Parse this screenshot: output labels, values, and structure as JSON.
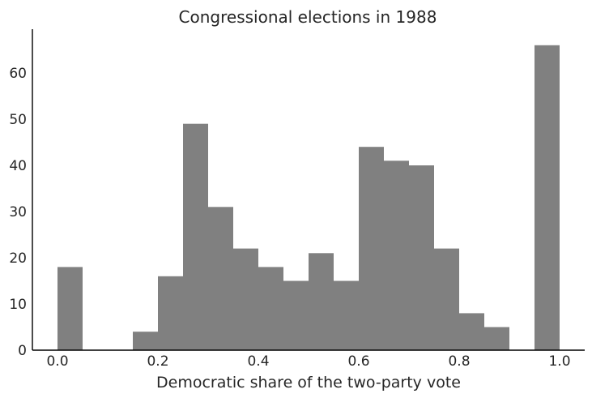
{
  "chart_data": {
    "type": "bar",
    "subtype": "histogram",
    "title": "Congressional elections in 1988",
    "xlabel": "Democratic share of the two-party vote",
    "ylabel": "",
    "bin_width": 0.05,
    "bin_edges": [
      0.0,
      0.05,
      0.1,
      0.15,
      0.2,
      0.25,
      0.3,
      0.35,
      0.4,
      0.45,
      0.5,
      0.55,
      0.6,
      0.65,
      0.7,
      0.75,
      0.8,
      0.85,
      0.9,
      0.95,
      1.0
    ],
    "values": [
      18,
      0,
      0,
      4,
      16,
      49,
      31,
      22,
      18,
      15,
      21,
      15,
      44,
      41,
      40,
      22,
      8,
      5,
      0,
      66
    ],
    "xlim": [
      -0.05,
      1.05
    ],
    "ylim": [
      0,
      69
    ],
    "xticks": [
      0.0,
      0.2,
      0.4,
      0.6,
      0.8,
      1.0
    ],
    "xtick_labels": [
      "0.0",
      "0.2",
      "0.4",
      "0.6",
      "0.8",
      "1.0"
    ],
    "yticks": [
      0,
      10,
      20,
      30,
      40,
      50,
      60
    ],
    "ytick_labels": [
      "0",
      "10",
      "20",
      "30",
      "40",
      "50",
      "60"
    ],
    "bar_color": "#808080",
    "axis_color": "#000000",
    "text_color": "#262626",
    "grid": false,
    "legend": "none"
  }
}
